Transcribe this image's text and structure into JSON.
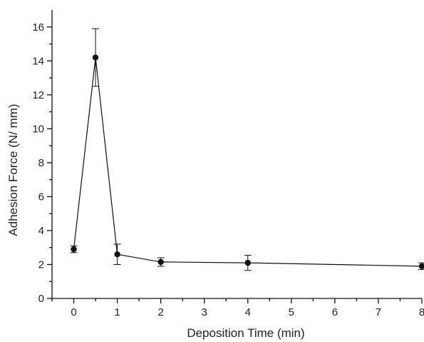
{
  "chart_data": {
    "type": "line",
    "title": "",
    "xlabel": "Deposition Time (min)",
    "ylabel": "Adhesion Force (N/ mm)",
    "x_ticks": [
      "0",
      "1",
      "2",
      "3",
      "4",
      "5",
      "6",
      "7",
      "8"
    ],
    "y_ticks": [
      "0",
      "2",
      "4",
      "6",
      "8",
      "10",
      "12",
      "14",
      "16"
    ],
    "xlim": [
      -0.5,
      8
    ],
    "ylim": [
      0,
      17
    ],
    "grid": false,
    "legend": "none",
    "series": [
      {
        "x": [
          0,
          0.5,
          1,
          2,
          4,
          8
        ],
        "y": [
          2.9,
          14.2,
          2.6,
          2.15,
          2.1,
          1.9
        ],
        "error": [
          0.2,
          1.7,
          0.6,
          0.25,
          0.45,
          0.2
        ]
      }
    ]
  }
}
